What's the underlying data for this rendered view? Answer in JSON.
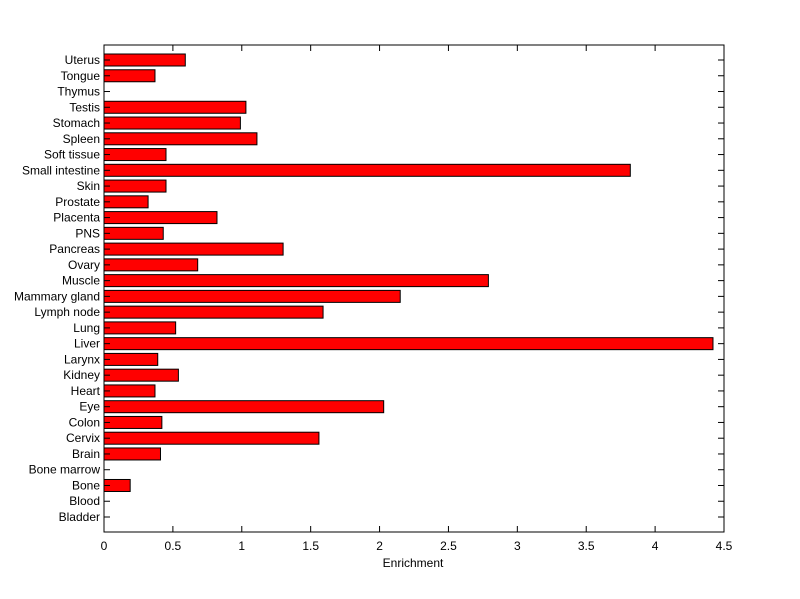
{
  "chart_data": {
    "type": "bar",
    "orientation": "horizontal",
    "title": "",
    "xlabel": "Enrichment",
    "ylabel": "",
    "xlim": [
      0,
      4.5
    ],
    "x_ticks": [
      "0",
      "0.5",
      "1",
      "1.5",
      "2",
      "2.5",
      "3",
      "3.5",
      "4",
      "4.5"
    ],
    "grid": false,
    "bar_color": "#ff0000",
    "categories": [
      "Bladder",
      "Blood",
      "Bone",
      "Bone marrow",
      "Brain",
      "Cervix",
      "Colon",
      "Eye",
      "Heart",
      "Kidney",
      "Larynx",
      "Liver",
      "Lung",
      "Lymph node",
      "Mammary gland",
      "Muscle",
      "Ovary",
      "Pancreas",
      "PNS",
      "Placenta",
      "Prostate",
      "Skin",
      "Small intestine",
      "Soft tissue",
      "Spleen",
      "Stomach",
      "Testis",
      "Thymus",
      "Tongue",
      "Uterus"
    ],
    "values": [
      0,
      0,
      0.19,
      0,
      0.41,
      1.56,
      0.42,
      2.03,
      0.37,
      0.54,
      0.39,
      4.42,
      0.52,
      1.59,
      2.15,
      2.79,
      0.68,
      1.3,
      0.43,
      0.82,
      0.32,
      0.45,
      3.82,
      0.45,
      1.11,
      0.99,
      1.03,
      0,
      0.37,
      0.59
    ]
  }
}
